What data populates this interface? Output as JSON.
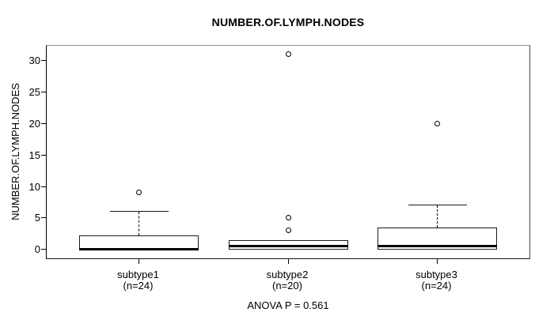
{
  "chart_data": {
    "type": "boxplot",
    "title": "NUMBER.OF.LYMPH.NODES",
    "ylabel": "NUMBER.OF.LYMPH.NODES",
    "xlabel": "",
    "footnote": "ANOVA P = 0.561",
    "anova_p": 0.561,
    "ylim": [
      -1.4,
      32.3
    ],
    "yticks": [
      0,
      5,
      10,
      15,
      20,
      25,
      30
    ],
    "grid": false,
    "legend": null,
    "colors": {
      "box_fill": "#ffffff",
      "line": "#000000",
      "background": "#ffffff"
    },
    "groups": [
      {
        "label": "subtype1",
        "n_label": "(n=24)",
        "n": 24,
        "whisker_low": 0,
        "q1": 0,
        "median": 0,
        "q3": 2.25,
        "whisker_high": 6,
        "outliers": [
          9
        ]
      },
      {
        "label": "subtype2",
        "n_label": "(n=20)",
        "n": 20,
        "whisker_low": 0,
        "q1": 0,
        "median": 0.5,
        "q3": 1.5,
        "whisker_high": 1.5,
        "outliers": [
          3,
          5,
          31
        ]
      },
      {
        "label": "subtype3",
        "n_label": "(n=24)",
        "n": 24,
        "whisker_low": 0,
        "q1": 0,
        "median": 0.5,
        "q3": 3.5,
        "whisker_high": 7,
        "outliers": [
          20
        ]
      }
    ]
  }
}
